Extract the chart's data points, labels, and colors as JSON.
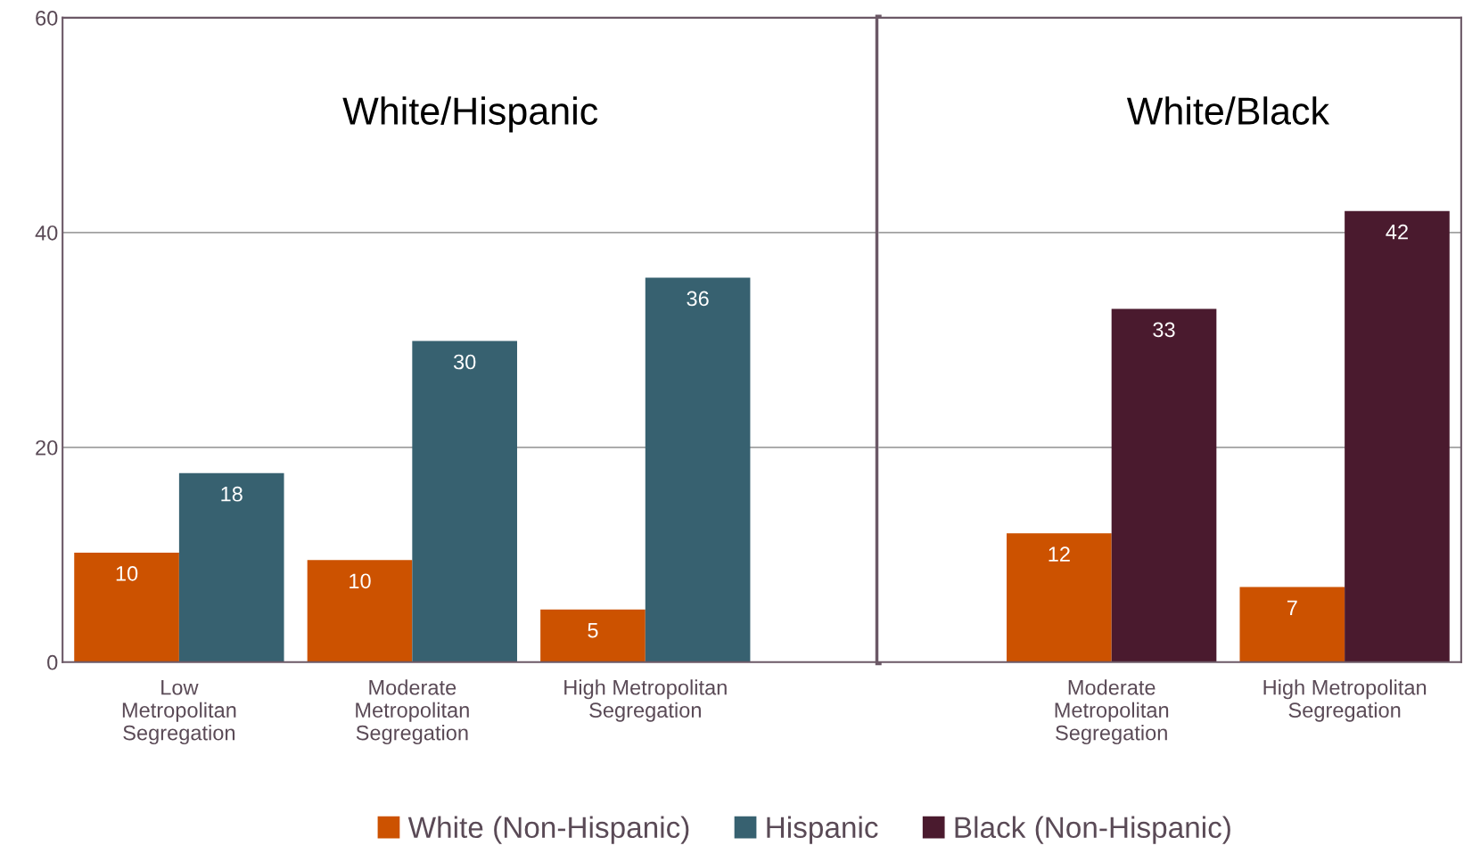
{
  "chart_data": [
    {
      "type": "bar",
      "title": "White/Hispanic",
      "categories": [
        "Low\nMetropolitan\nSegregation",
        "Moderate\nMetropolitan\nSegregation",
        "High Metropolitan\nSegregation"
      ],
      "ylim": [
        0,
        60
      ],
      "yticks": [
        0,
        20,
        40,
        60
      ],
      "grid": "y",
      "legend": "bottom",
      "series": [
        {
          "name": "White (Non-Hispanic)",
          "color": "#cc5200",
          "values": [
            10.2,
            9.5,
            4.9
          ],
          "value_labels": [
            "10",
            "10",
            "5"
          ]
        },
        {
          "name": "Hispanic",
          "color": "#376170",
          "values": [
            17.6,
            29.9,
            35.8
          ],
          "value_labels": [
            "18",
            "30",
            "36"
          ]
        }
      ]
    },
    {
      "type": "bar",
      "title": "White/Black",
      "categories": [
        "Moderate\nMetropolitan\nSegregation",
        "High Metropolitan\nSegregation"
      ],
      "ylim": [
        0,
        60
      ],
      "yticks": [
        0,
        20,
        40,
        60
      ],
      "grid": "y",
      "legend": "bottom",
      "tick_labels": "x",
      "series": [
        {
          "name": "White (Non-Hispanic)",
          "color": "#cc5200",
          "values": [
            12.0,
            7.0
          ],
          "value_labels": [
            "12",
            "7"
          ]
        },
        {
          "name": "Black (Non-Hispanic)",
          "color": "#4a1a2e",
          "values": [
            32.9,
            42.0
          ],
          "value_labels": [
            "33",
            "42"
          ]
        }
      ]
    }
  ]
}
